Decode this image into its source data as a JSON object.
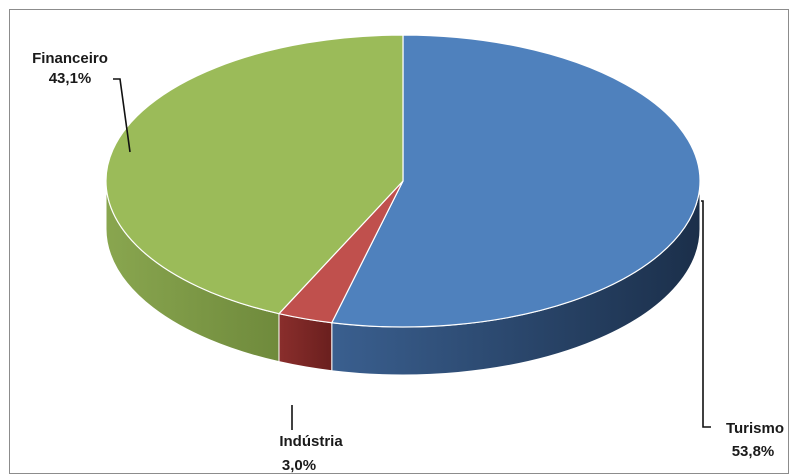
{
  "chart_data": {
    "type": "pie",
    "title": "",
    "categories": [
      "Turismo",
      "Indústria",
      "Financeiro"
    ],
    "values": [
      53.8,
      3.0,
      43.1
    ],
    "value_labels": [
      "53,8%",
      "3,0%",
      "43,1%"
    ],
    "colors": [
      "#4f81bd",
      "#c0504d",
      "#9bbb59"
    ],
    "legend": "none",
    "labels": {
      "turismo": {
        "name": "Turismo",
        "value": "53,8%"
      },
      "industria": {
        "name": "Indústria",
        "value": "3,0%"
      },
      "financeiro": {
        "name": "Financeiro",
        "value": "43,1%"
      }
    }
  }
}
